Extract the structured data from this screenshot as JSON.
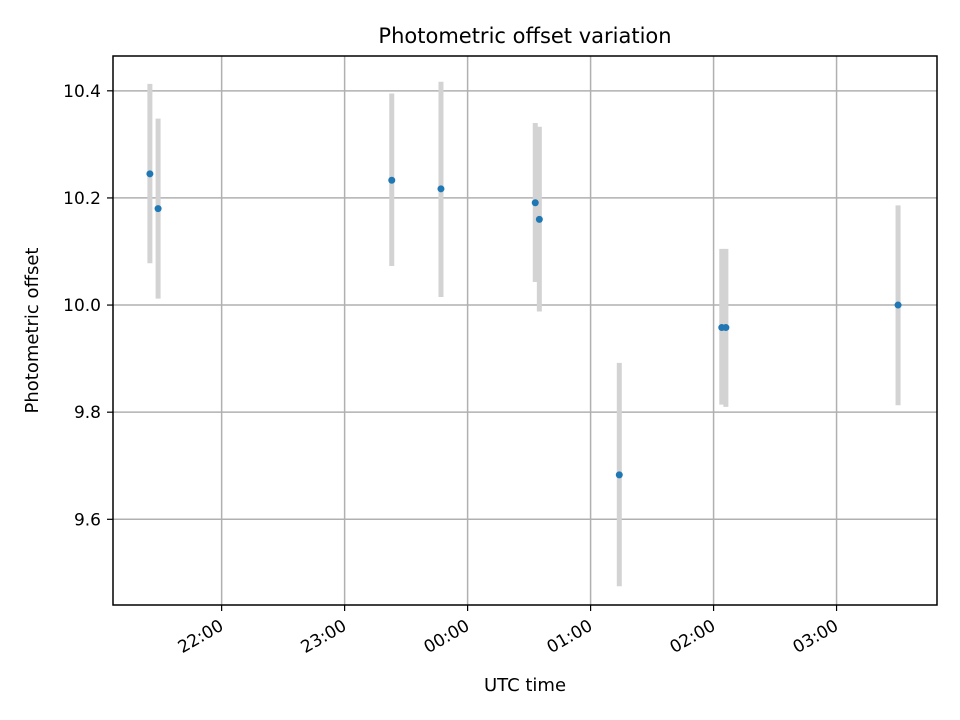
{
  "chart_data": {
    "type": "scatter",
    "title": "Photometric offset variation",
    "xlabel": "UTC time",
    "ylabel": "Photometric offset",
    "x_unit": "UTC time (HH:MM), points after midnight continue past 24:00",
    "xlim": [
      "21:07",
      "27:49"
    ],
    "ylim": [
      9.44,
      10.465
    ],
    "x_ticks": [
      "22:00",
      "23:00",
      "00:00",
      "01:00",
      "02:00",
      "03:00"
    ],
    "y_ticks": [
      9.6,
      9.8,
      10.0,
      10.2,
      10.4
    ],
    "grid": true,
    "colors": {
      "point": "#1f77b4",
      "errorbar": "#d3d3d3"
    },
    "points": [
      {
        "x": "21:25",
        "y": 10.245,
        "ylow": 10.078,
        "yhigh": 10.413
      },
      {
        "x": "21:29",
        "y": 10.18,
        "ylow": 10.012,
        "yhigh": 10.348
      },
      {
        "x": "23:23",
        "y": 10.233,
        "ylow": 10.073,
        "yhigh": 10.395
      },
      {
        "x": "23:47",
        "y": 10.217,
        "ylow": 10.015,
        "yhigh": 10.417
      },
      {
        "x": "00:33",
        "y": 10.191,
        "ylow": 10.043,
        "yhigh": 10.34
      },
      {
        "x": "00:35",
        "y": 10.16,
        "ylow": 9.988,
        "yhigh": 10.333
      },
      {
        "x": "01:14",
        "y": 9.683,
        "ylow": 9.475,
        "yhigh": 9.892
      },
      {
        "x": "02:04",
        "y": 9.958,
        "ylow": 9.814,
        "yhigh": 10.105
      },
      {
        "x": "02:06",
        "y": 9.958,
        "ylow": 9.81,
        "yhigh": 10.105
      },
      {
        "x": "03:30",
        "y": 10.0,
        "ylow": 9.813,
        "yhigh": 10.186
      }
    ]
  }
}
